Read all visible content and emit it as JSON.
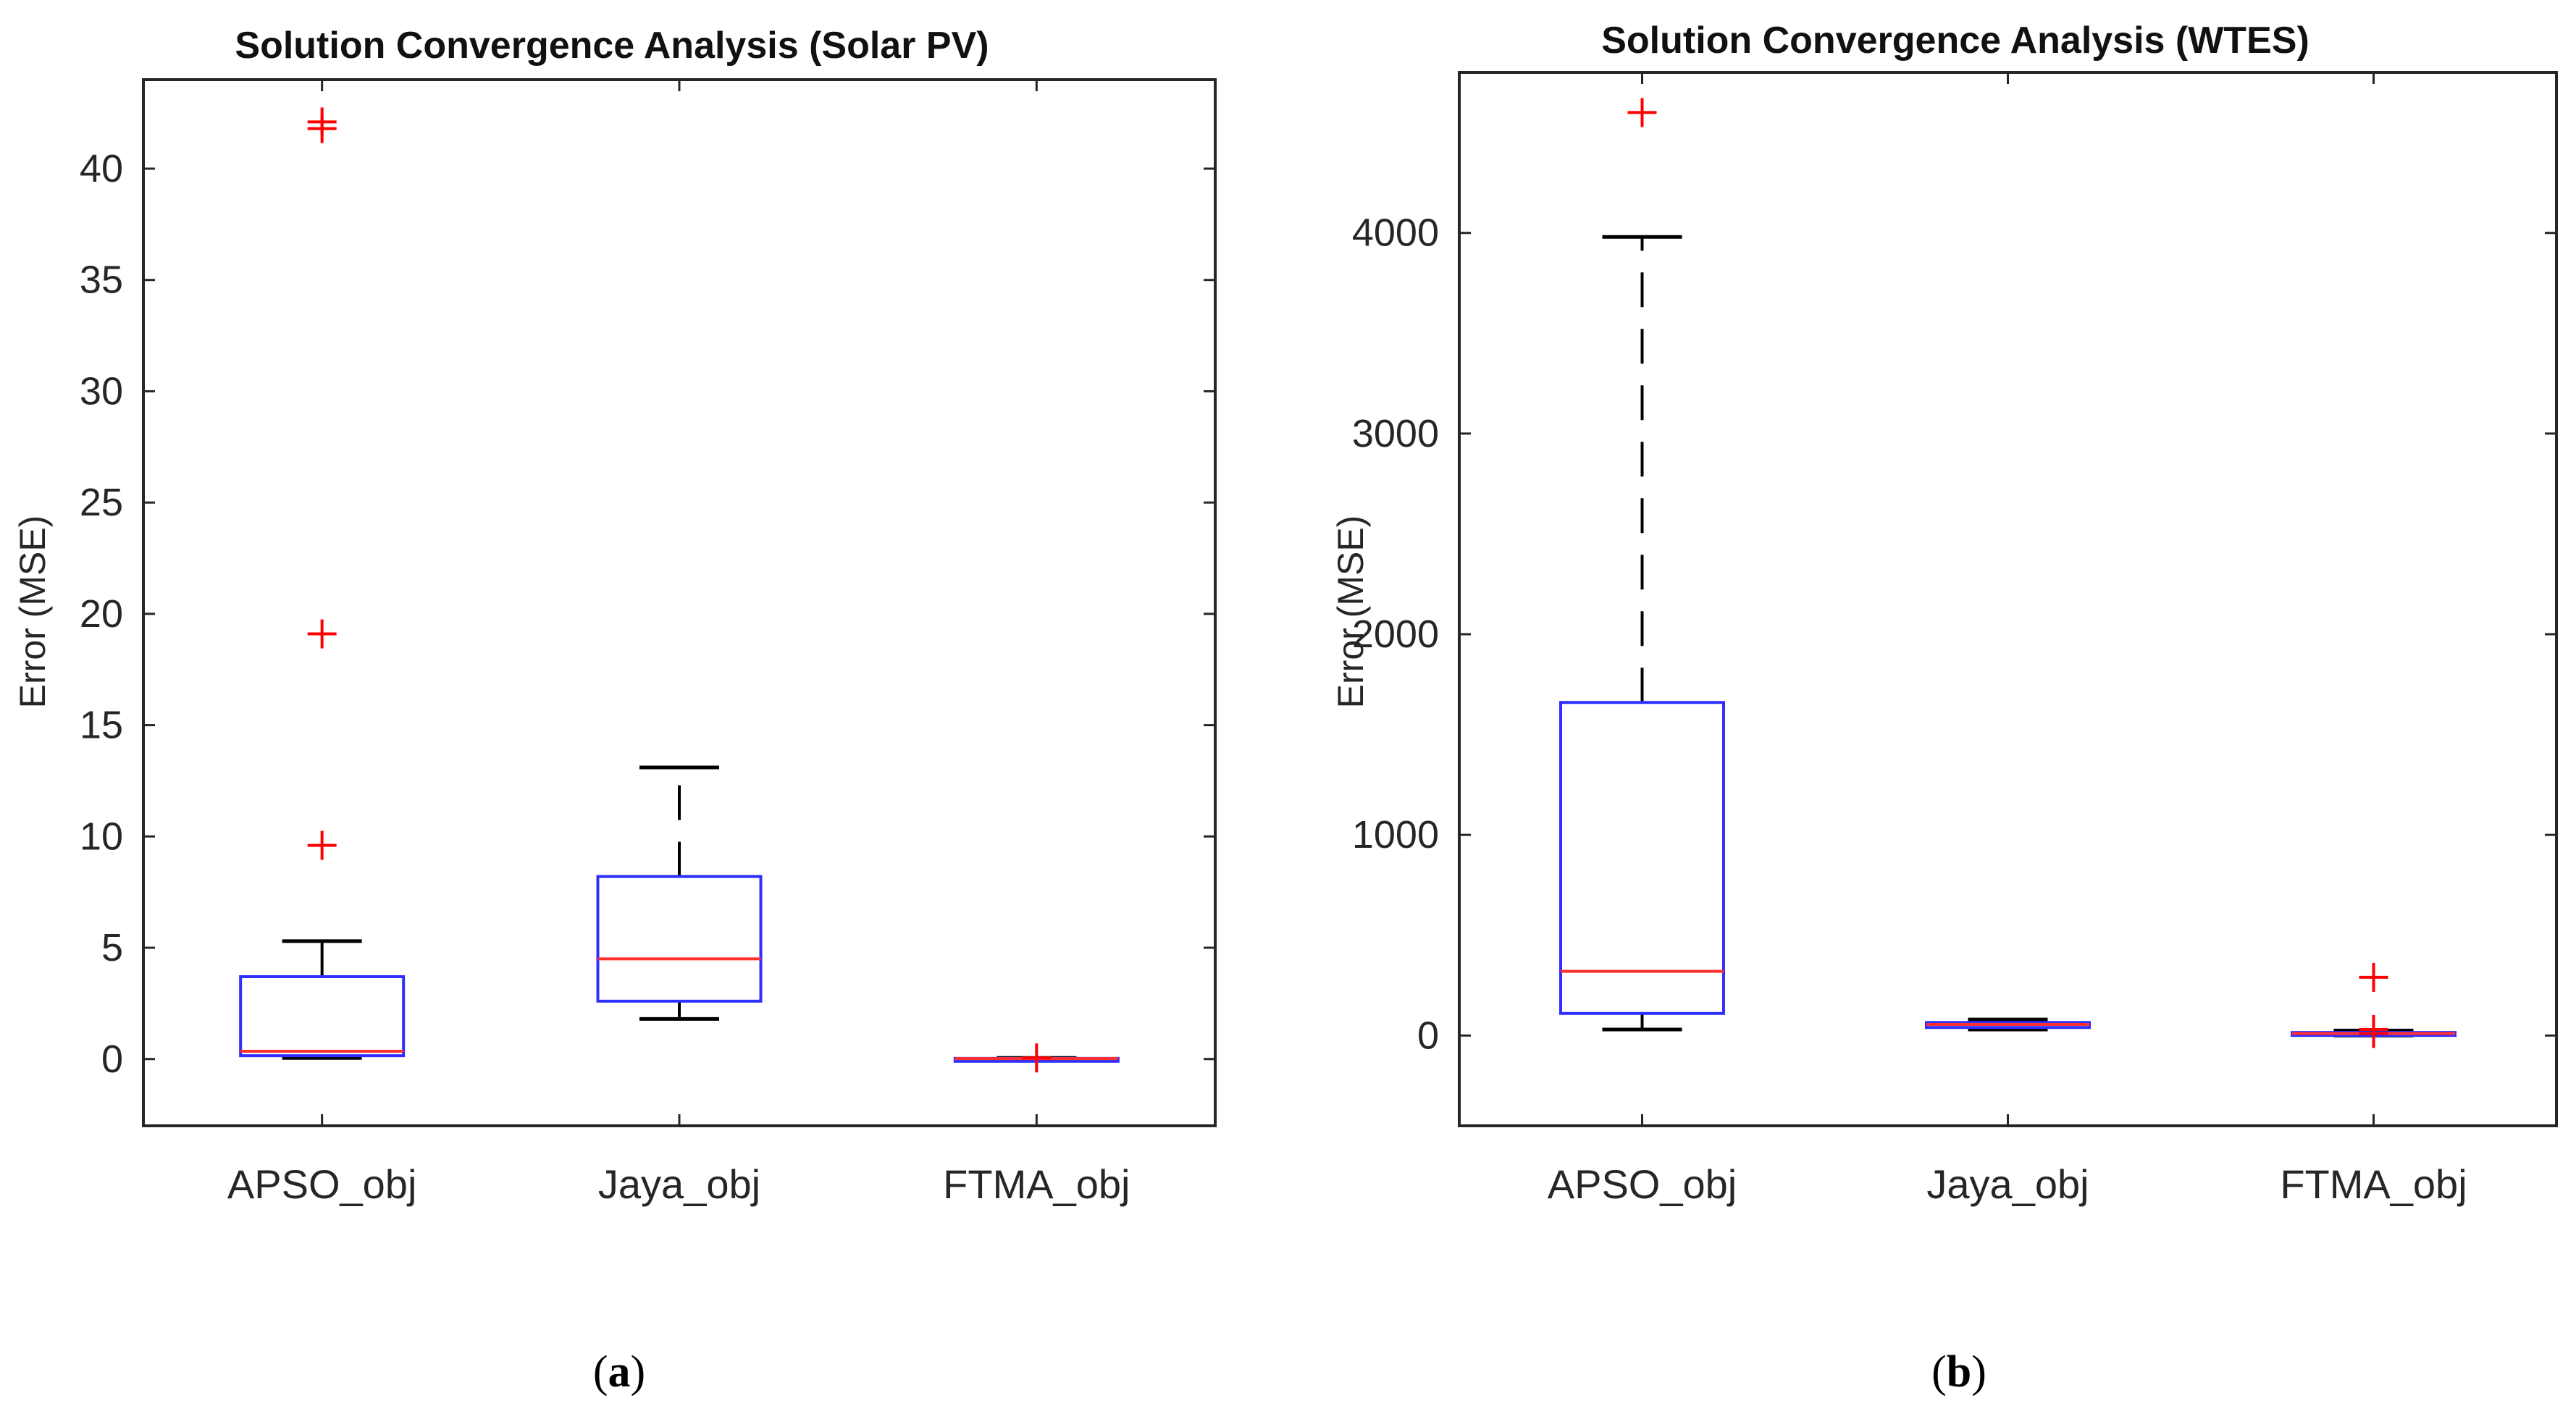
{
  "chart_data": [
    {
      "type": "boxplot",
      "title": "Solution Convergence Analysis (Solar PV)",
      "ylabel": "Error (MSE)",
      "xlabel": "",
      "ylim": [
        -3,
        44
      ],
      "yticks": [
        0,
        5,
        10,
        15,
        20,
        25,
        30,
        35,
        40
      ],
      "categories": [
        "APSO_obj",
        "Jaya_obj",
        "FTMA_obj"
      ],
      "boxes": [
        {
          "name": "APSO_obj",
          "whisker_low": 0.05,
          "q1": 0.15,
          "median": 0.35,
          "q3": 3.7,
          "whisker_high": 5.3,
          "outliers": [
            42.1,
            41.8,
            19.1,
            9.6
          ]
        },
        {
          "name": "Jaya_obj",
          "whisker_low": 1.8,
          "q1": 2.6,
          "median": 4.5,
          "q3": 8.2,
          "whisker_high": 13.1,
          "outliers": []
        },
        {
          "name": "FTMA_obj",
          "whisker_low": 0.0,
          "q1": 0.0,
          "median": 0.02,
          "q3": 0.03,
          "whisker_high": 0.05,
          "outliers": [
            0.05
          ]
        }
      ],
      "caption": "a"
    },
    {
      "type": "boxplot",
      "title": "Solution Convergence Analysis (WTES)",
      "ylabel": "Error (MSE)",
      "xlabel": "",
      "ylim": [
        -450,
        4800
      ],
      "yticks": [
        0,
        1000,
        2000,
        3000,
        4000
      ],
      "categories": [
        "APSO_obj",
        "Jaya_obj",
        "FTMA_obj"
      ],
      "boxes": [
        {
          "name": "APSO_obj",
          "whisker_low": 30,
          "q1": 110,
          "median": 320,
          "q3": 1660,
          "whisker_high": 3980,
          "outliers": [
            4600
          ]
        },
        {
          "name": "Jaya_obj",
          "whisker_low": 30,
          "q1": 40,
          "median": 55,
          "q3": 65,
          "whisker_high": 80,
          "outliers": []
        },
        {
          "name": "FTMA_obj",
          "whisker_low": 0,
          "q1": 5,
          "median": 10,
          "q3": 15,
          "whisker_high": 25,
          "outliers": [
            290,
            30,
            10
          ]
        }
      ],
      "caption": "b"
    }
  ],
  "colors": {
    "box": "#2f2fff",
    "median": "#ff3030",
    "whisker": "#000000",
    "outlier": "#ff0000",
    "axes": "#262626"
  }
}
